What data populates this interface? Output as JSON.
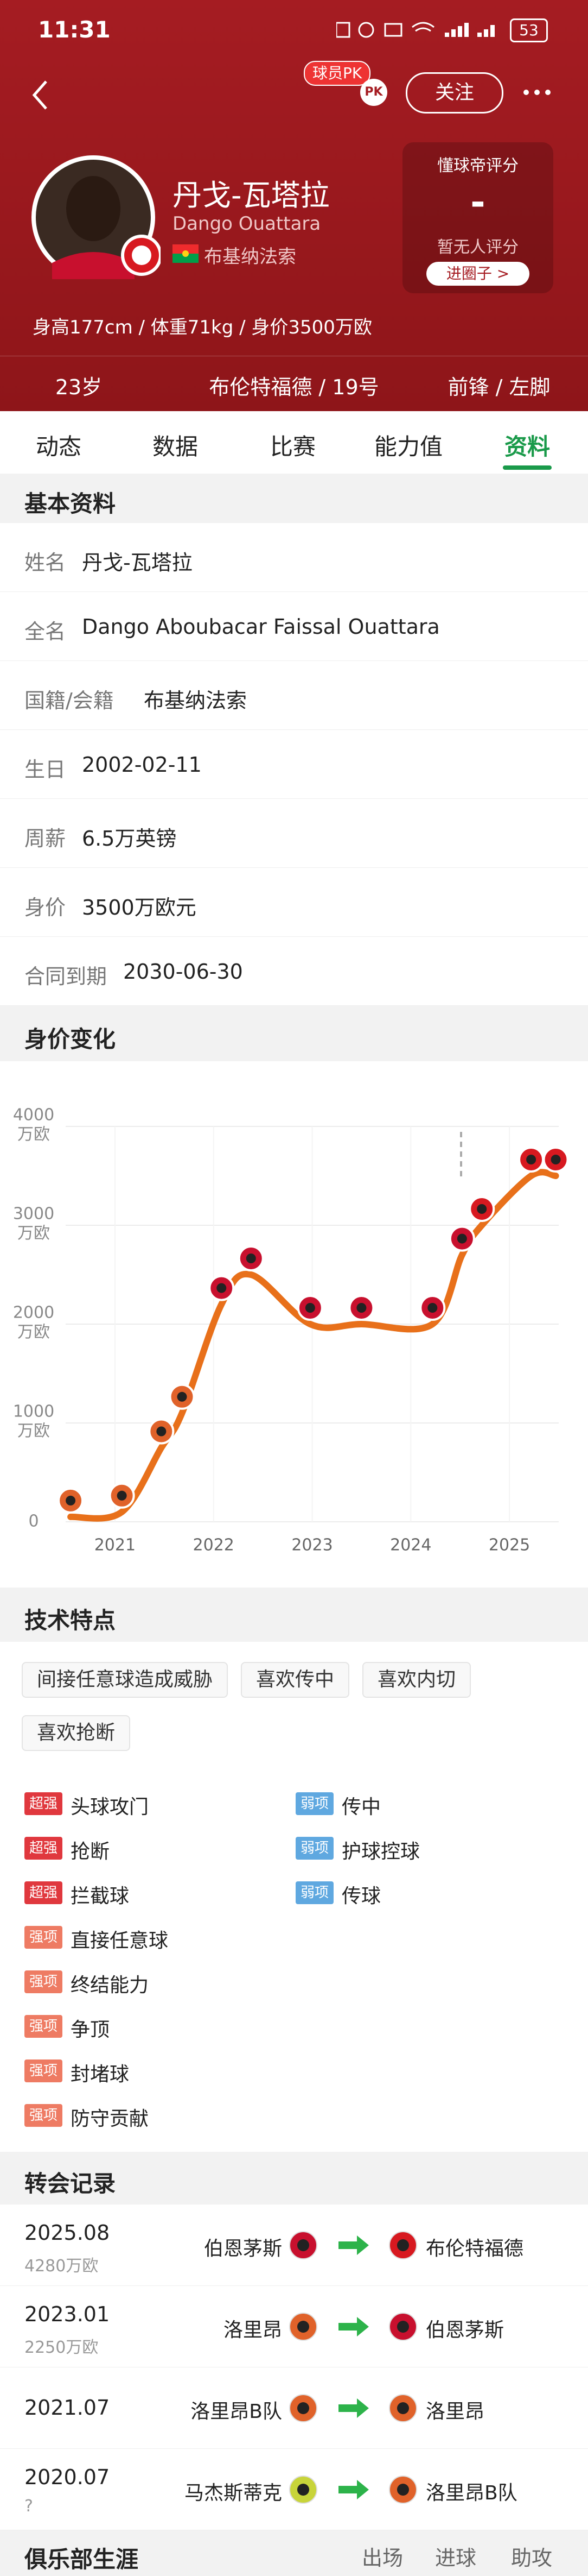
{
  "status_bar": {
    "time": "11:31",
    "battery": "53"
  },
  "header": {
    "pk_badge": "球员PK",
    "pk_icon": "PK",
    "follow": "关注",
    "name": "丹戈-瓦塔拉",
    "name_en": "Dango Ouattara",
    "nationality": "布基纳法索",
    "stats_line": "身高177cm / 体重71kg / 身价3500万欧",
    "rating": {
      "title": "懂球帝评分",
      "score": "-",
      "note": "暂无人评分",
      "button": "进圈子 >"
    },
    "summary": [
      "23岁",
      "布伦特福德 / 19号",
      "前锋 / 左脚"
    ]
  },
  "tabs": [
    "动态",
    "数据",
    "比赛",
    "能力值",
    "资料"
  ],
  "active_tab": 4,
  "basic_info": {
    "title": "基本资料",
    "rows": [
      [
        "姓名",
        "丹戈-瓦塔拉"
      ],
      [
        "全名",
        "Dango Aboubacar Faissal Ouattara"
      ],
      [
        "国籍/会籍",
        "布基纳法索"
      ],
      [
        "生日",
        "2002-02-11"
      ],
      [
        "周薪",
        "6.5万英镑"
      ],
      [
        "身价",
        "3500万欧元"
      ],
      [
        "合同到期",
        "2030-06-30"
      ]
    ]
  },
  "value_chart": {
    "title": "身价变化",
    "type": "line",
    "color": "#e8701a",
    "x": [
      2020.55,
      2021.07,
      2021.47,
      2021.68,
      2022.08,
      2022.38,
      2022.98,
      2023.5,
      2024.22,
      2024.52,
      2024.72,
      2025.22,
      2025.47
    ],
    "values": [
      50,
      100,
      750,
      1100,
      2200,
      2500,
      2000,
      2000,
      2000,
      2700,
      3000,
      3500,
      3500
    ],
    "point_colors": [
      "#e0622a",
      "#e0622a",
      "#e0622a",
      "#e0622a",
      "#c8102e",
      "#c8102e",
      "#c8102e",
      "#c8102e",
      "#c8102e",
      "#c8102e",
      "#d71920",
      "#d71920",
      "#d71920"
    ],
    "xlim": [
      2020.5,
      2025.5
    ],
    "xticks": [
      2021,
      2022,
      2023,
      2024,
      2025
    ],
    "ylim": [
      0,
      4000
    ],
    "yticks": [
      0,
      1000,
      2000,
      3000,
      4000
    ],
    "y_unit": "万欧",
    "grid": true
  },
  "features": {
    "title": "技术特点",
    "tags": [
      "间接任意球造成威胁",
      "喜欢传中",
      "喜欢内切",
      "喜欢抢断"
    ],
    "strengths": [
      {
        "level": "超强",
        "name": "头球攻门",
        "color": "#e0383e"
      },
      {
        "level": "超强",
        "name": "抢断",
        "color": "#e0383e"
      },
      {
        "level": "超强",
        "name": "拦截球",
        "color": "#e0383e"
      },
      {
        "level": "强项",
        "name": "直接任意球",
        "color": "#ee7b63"
      },
      {
        "level": "强项",
        "name": "终结能力",
        "color": "#ee7b63"
      },
      {
        "level": "强项",
        "name": "争顶",
        "color": "#ee7b63"
      },
      {
        "level": "强项",
        "name": "封堵球",
        "color": "#ee7b63"
      },
      {
        "level": "强项",
        "name": "防守贡献",
        "color": "#ee7b63"
      }
    ],
    "weaknesses": [
      {
        "level": "弱项",
        "name": "传中",
        "color": "#5fa8e0"
      },
      {
        "level": "弱项",
        "name": "护球控球",
        "color": "#5fa8e0"
      },
      {
        "level": "弱项",
        "name": "传球",
        "color": "#5fa8e0"
      }
    ]
  },
  "transfers": {
    "title": "转会记录",
    "rows": [
      {
        "date": "2025.08",
        "fee": "4280万欧",
        "from": "伯恩茅斯",
        "to": "布伦特福德",
        "from_color": "#c8102e",
        "to_color": "#d71920"
      },
      {
        "date": "2023.01",
        "fee": "2250万欧",
        "from": "洛里昂",
        "to": "伯恩茅斯",
        "from_color": "#e0622a",
        "to_color": "#c8102e"
      },
      {
        "date": "2021.07",
        "from": "洛里昂B队",
        "to": "洛里昂",
        "from_color": "#e0622a",
        "to_color": "#e0622a"
      },
      {
        "date": "2020.07",
        "fee": "?",
        "from": "马杰斯蒂克",
        "to": "洛里昂B队",
        "from_color": "#c8d43a",
        "to_color": "#e0622a"
      }
    ]
  },
  "club_career": {
    "title": "俱乐部生涯",
    "columns": [
      "出场",
      "进球",
      "助攻"
    ]
  }
}
